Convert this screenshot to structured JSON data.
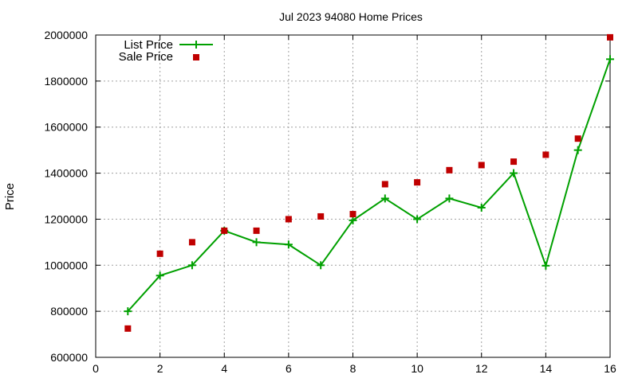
{
  "chart_data": {
    "type": "line",
    "title": "Jul 2023 94080 Home Prices",
    "xlabel": "",
    "ylabel": "Price",
    "xlim": [
      0,
      16
    ],
    "ylim": [
      600000,
      2000000
    ],
    "x_ticks": [
      0,
      2,
      4,
      6,
      8,
      10,
      12,
      14,
      16
    ],
    "y_ticks": [
      600000,
      800000,
      1000000,
      1200000,
      1400000,
      1600000,
      1800000,
      2000000
    ],
    "grid": true,
    "legend_position": "top-left",
    "series": [
      {
        "name": "List Price",
        "style": "line-points",
        "color": "#00a000",
        "x": [
          1,
          2,
          3,
          4,
          5,
          6,
          7,
          8,
          9,
          10,
          11,
          12,
          13,
          14,
          15,
          16
        ],
        "values": [
          800000,
          955000,
          1000000,
          1150000,
          1100000,
          1090000,
          1000000,
          1195000,
          1290000,
          1200000,
          1290000,
          1250000,
          1400000,
          998000,
          1500000,
          1895000
        ]
      },
      {
        "name": "Sale Price",
        "style": "points",
        "color": "#c00000",
        "x": [
          1,
          2,
          3,
          4,
          5,
          6,
          7,
          8,
          9,
          10,
          11,
          12,
          13,
          14,
          15,
          16
        ],
        "values": [
          725000,
          1050000,
          1100000,
          1150000,
          1150000,
          1200000,
          1212000,
          1222000,
          1352000,
          1360000,
          1413000,
          1435000,
          1450000,
          1480000,
          1550000,
          1990000
        ]
      }
    ]
  }
}
